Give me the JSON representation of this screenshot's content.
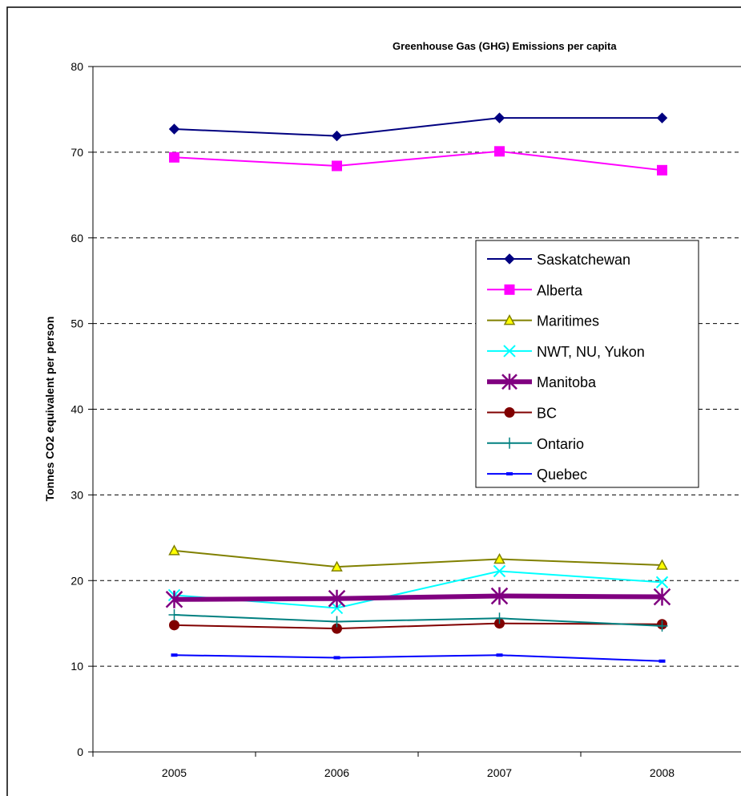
{
  "chart_data": {
    "type": "line",
    "title": "Greenhouse Gas (GHG) Emissions per capita",
    "xlabel": "",
    "ylabel": "Tonnes CO2 equivalent per person",
    "categories": [
      "2005",
      "2006",
      "2007",
      "2008"
    ],
    "ylim": [
      0,
      80
    ],
    "yticks": [
      0,
      10,
      20,
      30,
      40,
      50,
      60,
      70,
      80
    ],
    "grid": "horizontal dashed",
    "legend": "right",
    "series": [
      {
        "name": "Saskatchewan",
        "values": [
          72.7,
          71.9,
          74.0,
          74.0
        ],
        "color": "#000080",
        "marker": "diamond"
      },
      {
        "name": "Alberta",
        "values": [
          69.4,
          68.4,
          70.1,
          67.9
        ],
        "color": "#ff00ff",
        "marker": "square"
      },
      {
        "name": "Maritimes",
        "values": [
          23.5,
          21.6,
          22.5,
          21.8
        ],
        "color": "#808000",
        "marker": "triangle"
      },
      {
        "name": "NWT, NU, Yukon",
        "values": [
          18.3,
          16.8,
          21.1,
          19.8
        ],
        "color": "#00ffff",
        "marker": "x"
      },
      {
        "name": "Manitoba",
        "values": [
          17.8,
          17.9,
          18.2,
          18.1
        ],
        "color": "#800080",
        "marker": "star"
      },
      {
        "name": "BC",
        "values": [
          14.8,
          14.4,
          15.0,
          14.9
        ],
        "color": "#800000",
        "marker": "circle"
      },
      {
        "name": "Ontario",
        "values": [
          16.0,
          15.2,
          15.6,
          14.7
        ],
        "color": "#008080",
        "marker": "plus"
      },
      {
        "name": "Quebec",
        "values": [
          11.3,
          11.0,
          11.3,
          10.6
        ],
        "color": "#0000ff",
        "marker": "dash"
      }
    ]
  }
}
